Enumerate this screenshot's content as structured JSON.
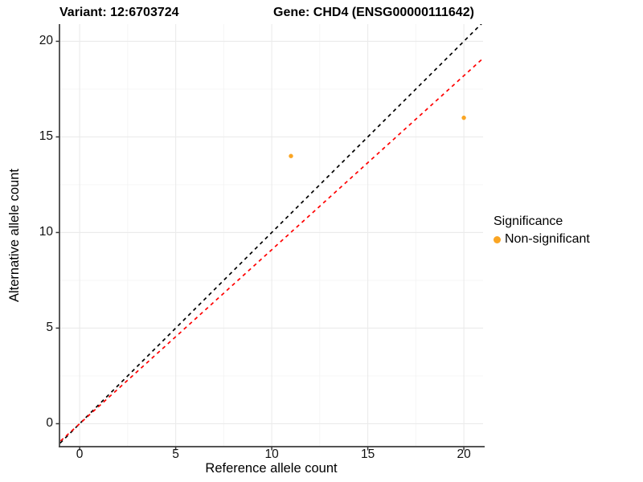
{
  "header": {
    "variant_title": "Variant: 12:6703724",
    "gene_title": "Gene: CHD4 (ENSG00000111642)"
  },
  "chart_data": {
    "type": "scatter",
    "xlabel": "Reference allele count",
    "ylabel": "Alternative allele count",
    "xlim": [
      -1.05,
      21.0
    ],
    "ylim": [
      -1.2,
      20.9
    ],
    "xticks": [
      0,
      5,
      10,
      15,
      20
    ],
    "yticks": [
      0,
      5,
      10,
      15,
      20
    ],
    "minor_xticks": [
      2.5,
      7.5,
      12.5,
      17.5
    ],
    "minor_yticks": [
      2.5,
      7.5,
      12.5,
      17.5
    ],
    "grid": "on",
    "series": [
      {
        "name": "Non-significant",
        "color": "#FAA523",
        "points": [
          {
            "x": 11,
            "y": 14
          },
          {
            "x": 20,
            "y": 16
          }
        ]
      }
    ],
    "reference_lines": [
      {
        "name": "identity-line",
        "slope": 1.0,
        "intercept": 0,
        "color": "#000000",
        "style": "dashed"
      },
      {
        "name": "expected-ratio-line",
        "slope": 0.91,
        "intercept": 0,
        "color": "#FF0000",
        "style": "dashed"
      }
    ],
    "legend": {
      "title": "Significance",
      "position": "right",
      "entries": [
        {
          "label": "Non-significant",
          "color": "#FAA523"
        }
      ]
    }
  },
  "styles": {
    "grid_major_color": "#EBEBEB",
    "grid_minor_color": "#F4F4F4",
    "axis_line_color": "#3C3C3C",
    "tick_color": "#333333",
    "text_color": "#000000"
  }
}
